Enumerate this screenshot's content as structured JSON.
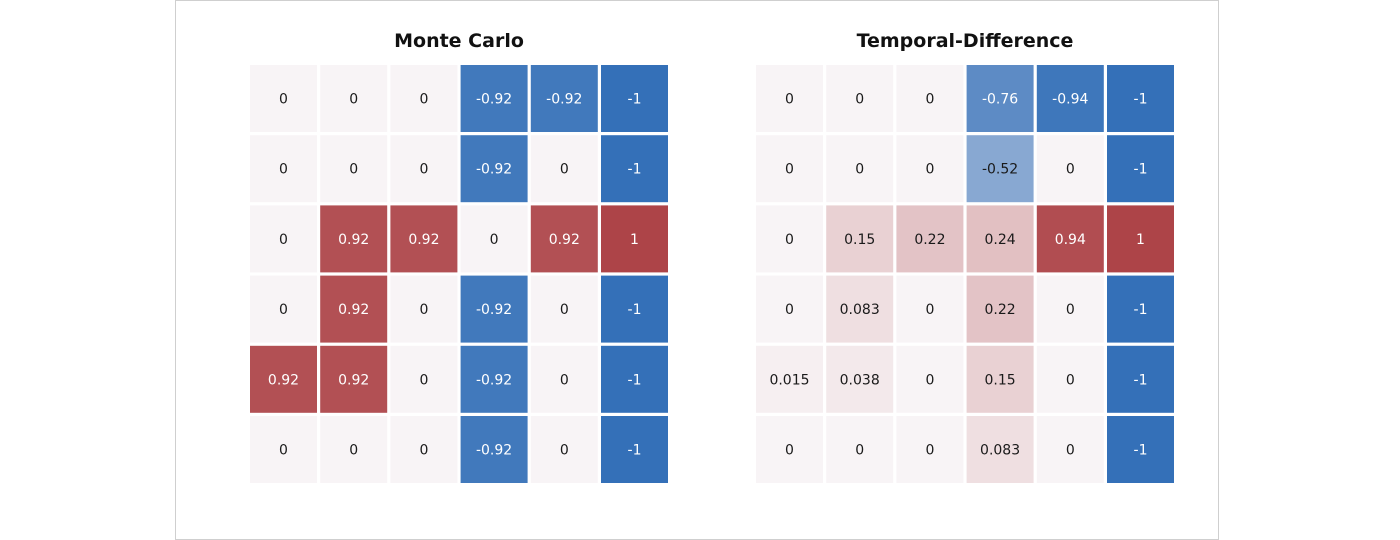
{
  "chart_data": [
    {
      "type": "heatmap",
      "title": "Monte Carlo",
      "rows": [
        [
          "0",
          "0",
          "0",
          "-0.92",
          "-0.92",
          "-1"
        ],
        [
          "0",
          "0",
          "0",
          "-0.92",
          "0",
          "-1"
        ],
        [
          "0",
          "0.92",
          "0.92",
          "0",
          "0.92",
          "1"
        ],
        [
          "0",
          "0.92",
          "0",
          "-0.92",
          "0",
          "-1"
        ],
        [
          "0.92",
          "0.92",
          "0",
          "-0.92",
          "0",
          "-1"
        ],
        [
          "0",
          "0",
          "0",
          "-0.92",
          "0",
          "-1"
        ]
      ],
      "value_range": [
        -1,
        1
      ],
      "colors": {
        "negative": "#3470b8",
        "neutral": "#f8f4f6",
        "positive": "#ad4448"
      }
    },
    {
      "type": "heatmap",
      "title": "Temporal-Difference",
      "rows": [
        [
          "0",
          "0",
          "0",
          "-0.76",
          "-0.94",
          "-1"
        ],
        [
          "0",
          "0",
          "0",
          "-0.52",
          "0",
          "-1"
        ],
        [
          "0",
          "0.15",
          "0.22",
          "0.24",
          "0.94",
          "1"
        ],
        [
          "0",
          "0.083",
          "0",
          "0.22",
          "0",
          "-1"
        ],
        [
          "0.015",
          "0.038",
          "0",
          "0.15",
          "0",
          "-1"
        ],
        [
          "0",
          "0",
          "0",
          "0.083",
          "0",
          "-1"
        ]
      ],
      "value_range": [
        -1,
        1
      ],
      "colors": {
        "negative": "#3470b8",
        "neutral": "#f8f4f6",
        "positive": "#ad4448"
      }
    }
  ]
}
